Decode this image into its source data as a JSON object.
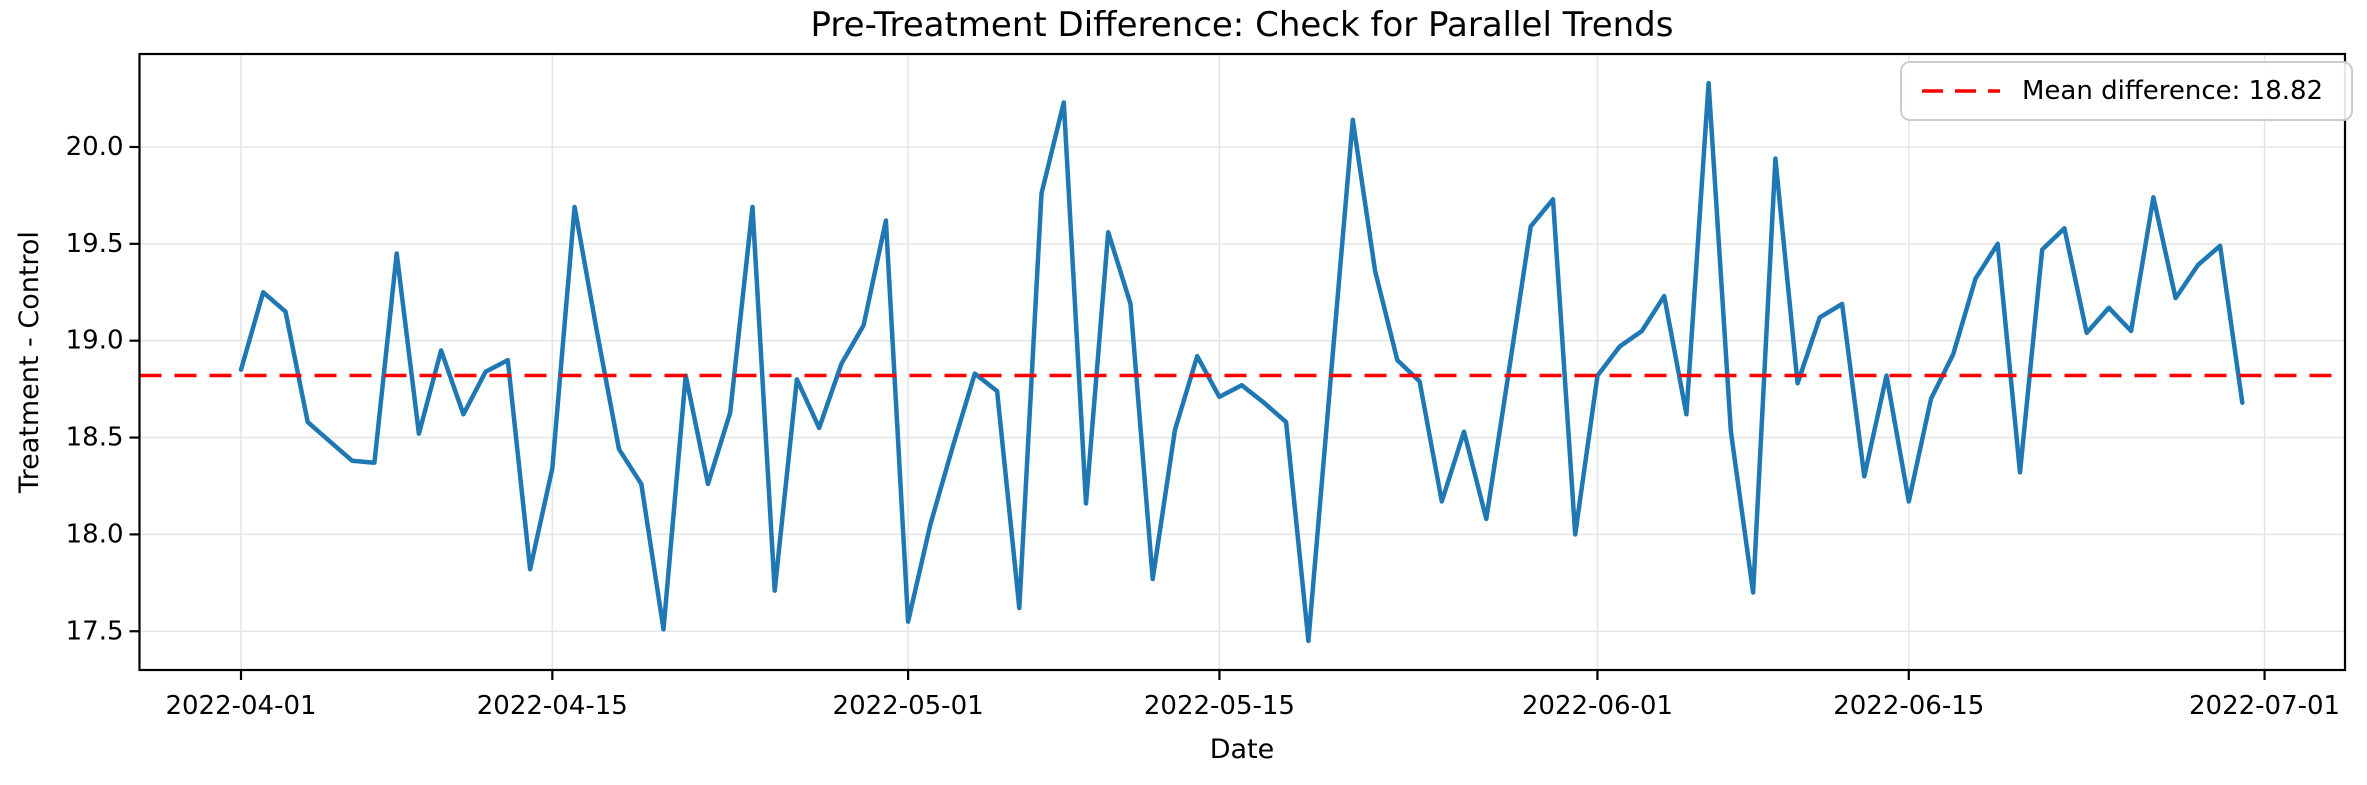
{
  "title": "Pre-Treatment Difference: Check for Parallel Trends",
  "legend": {
    "label": "Mean difference: 18.82"
  },
  "colors": {
    "series_line": "#1f77b4",
    "mean_line": "#ff0000",
    "grid": "#e5e5e5",
    "spine": "#000000",
    "legend_border": "#cccccc"
  },
  "chart_data": {
    "type": "line",
    "title": "Pre-Treatment Difference: Check for Parallel Trends",
    "xlabel": "Date",
    "ylabel": "Treatment - Control",
    "grid": true,
    "legend_position": "upper right",
    "legend_label": "Mean difference: 18.82",
    "mean_reference": 18.82,
    "ylim": [
      17.3,
      20.48
    ],
    "y_ticks": [
      "17.5",
      "18.0",
      "18.5",
      "19.0",
      "19.5",
      "20.0"
    ],
    "y_tick_values": [
      17.5,
      18.0,
      18.5,
      19.0,
      19.5,
      20.0
    ],
    "x_tick_labels": [
      "2022-04-01",
      "2022-04-15",
      "2022-05-01",
      "2022-05-15",
      "2022-06-01",
      "2022-06-15",
      "2022-07-01"
    ],
    "x": [
      "2022-04-01",
      "2022-04-02",
      "2022-04-03",
      "2022-04-04",
      "2022-04-05",
      "2022-04-06",
      "2022-04-07",
      "2022-04-08",
      "2022-04-09",
      "2022-04-10",
      "2022-04-11",
      "2022-04-12",
      "2022-04-13",
      "2022-04-14",
      "2022-04-15",
      "2022-04-16",
      "2022-04-17",
      "2022-04-18",
      "2022-04-19",
      "2022-04-20",
      "2022-04-21",
      "2022-04-22",
      "2022-04-23",
      "2022-04-24",
      "2022-04-25",
      "2022-04-26",
      "2022-04-27",
      "2022-04-28",
      "2022-04-29",
      "2022-04-30",
      "2022-05-01",
      "2022-05-02",
      "2022-05-03",
      "2022-05-04",
      "2022-05-05",
      "2022-05-06",
      "2022-05-07",
      "2022-05-08",
      "2022-05-09",
      "2022-05-10",
      "2022-05-11",
      "2022-05-12",
      "2022-05-13",
      "2022-05-14",
      "2022-05-15",
      "2022-05-16",
      "2022-05-17",
      "2022-05-18",
      "2022-05-19",
      "2022-05-20",
      "2022-05-21",
      "2022-05-22",
      "2022-05-23",
      "2022-05-24",
      "2022-05-25",
      "2022-05-26",
      "2022-05-27",
      "2022-05-28",
      "2022-05-29",
      "2022-05-30",
      "2022-05-31",
      "2022-06-01",
      "2022-06-02",
      "2022-06-03",
      "2022-06-04",
      "2022-06-05",
      "2022-06-06",
      "2022-06-07",
      "2022-06-08",
      "2022-06-09",
      "2022-06-10",
      "2022-06-11",
      "2022-06-12",
      "2022-06-13",
      "2022-06-14",
      "2022-06-15",
      "2022-06-16",
      "2022-06-17",
      "2022-06-18",
      "2022-06-19",
      "2022-06-20",
      "2022-06-21",
      "2022-06-22",
      "2022-06-23",
      "2022-06-24",
      "2022-06-25",
      "2022-06-26",
      "2022-06-27",
      "2022-06-28",
      "2022-06-29",
      "2022-06-30"
    ],
    "series": [
      {
        "name": "Treatment - Control difference",
        "color": "#1f77b4",
        "values": [
          18.85,
          19.25,
          19.15,
          18.58,
          18.48,
          18.38,
          18.37,
          19.45,
          18.52,
          18.95,
          18.62,
          18.84,
          18.9,
          17.82,
          18.34,
          19.69,
          19.05,
          18.44,
          18.26,
          17.51,
          18.82,
          18.26,
          18.63,
          19.69,
          17.71,
          18.8,
          18.55,
          18.88,
          19.08,
          19.62,
          17.55,
          18.05,
          18.45,
          18.83,
          18.74,
          17.62,
          19.76,
          20.23,
          18.16,
          19.56,
          19.19,
          17.77,
          18.54,
          18.92,
          18.71,
          18.77,
          18.68,
          18.58,
          17.45,
          18.8,
          20.14,
          19.36,
          18.9,
          18.79,
          18.17,
          18.53,
          18.08,
          18.83,
          19.59,
          19.73,
          18.0,
          18.82,
          18.97,
          19.05,
          19.23,
          18.62,
          20.33,
          18.53,
          17.7,
          19.94,
          18.78,
          19.12,
          19.19,
          18.3,
          18.82,
          18.17,
          18.7,
          18.93,
          19.32,
          19.5,
          18.32,
          19.47,
          19.58,
          19.04,
          19.17,
          19.05,
          19.74,
          19.22,
          19.39,
          19.49,
          18.68
        ]
      }
    ]
  }
}
